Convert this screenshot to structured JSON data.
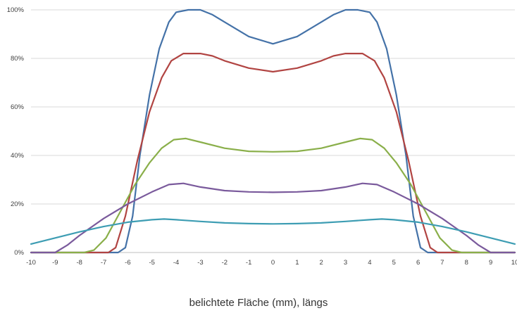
{
  "chart_data": {
    "type": "line",
    "title": "",
    "xlabel": "belichtete Fläche (mm), längs",
    "ylabel": "",
    "xlim": [
      -10,
      10
    ],
    "ylim": [
      0,
      100
    ],
    "x_ticks": [
      "-10",
      "-9",
      "-8",
      "-7",
      "-6",
      "-5",
      "-4",
      "-3",
      "-2",
      "-1",
      "0",
      "1",
      "2",
      "3",
      "4",
      "5",
      "6",
      "7",
      "8",
      "9",
      "10"
    ],
    "y_ticks": [
      "0%",
      "20%",
      "40%",
      "60%",
      "80%",
      "100%"
    ],
    "grid": "horizontal",
    "legend": "none",
    "series": [
      {
        "color": "#4472a8",
        "points": [
          [
            -10,
            0
          ],
          [
            -6.4,
            0
          ],
          [
            -6.1,
            2
          ],
          [
            -5.8,
            15
          ],
          [
            -5.5,
            40
          ],
          [
            -5.1,
            65
          ],
          [
            -4.7,
            84
          ],
          [
            -4.3,
            95
          ],
          [
            -4,
            99
          ],
          [
            -3.5,
            100
          ],
          [
            -3,
            100
          ],
          [
            -2.5,
            98
          ],
          [
            -2,
            95
          ],
          [
            -1,
            89
          ],
          [
            0,
            86
          ],
          [
            1,
            89
          ],
          [
            2,
            95
          ],
          [
            2.5,
            98
          ],
          [
            3,
            100
          ],
          [
            3.5,
            100
          ],
          [
            4,
            99
          ],
          [
            4.3,
            95
          ],
          [
            4.7,
            84
          ],
          [
            5.1,
            65
          ],
          [
            5.5,
            40
          ],
          [
            5.8,
            15
          ],
          [
            6.1,
            2
          ],
          [
            6.4,
            0
          ],
          [
            10,
            0
          ]
        ]
      },
      {
        "color": "#b14442",
        "points": [
          [
            -10,
            0
          ],
          [
            -6.8,
            0
          ],
          [
            -6.5,
            2
          ],
          [
            -6.1,
            15
          ],
          [
            -5.6,
            38
          ],
          [
            -5.1,
            58
          ],
          [
            -4.6,
            72
          ],
          [
            -4.2,
            79
          ],
          [
            -3.7,
            82
          ],
          [
            -3,
            82
          ],
          [
            -2.5,
            81
          ],
          [
            -2,
            79
          ],
          [
            -1,
            76
          ],
          [
            0,
            74.5
          ],
          [
            1,
            76
          ],
          [
            2,
            79
          ],
          [
            2.5,
            81
          ],
          [
            3,
            82
          ],
          [
            3.7,
            82
          ],
          [
            4.2,
            79
          ],
          [
            4.6,
            72
          ],
          [
            5.1,
            58
          ],
          [
            5.6,
            38
          ],
          [
            6.1,
            15
          ],
          [
            6.5,
            2
          ],
          [
            6.8,
            0
          ],
          [
            10,
            0
          ]
        ]
      },
      {
        "color": "#8aaf4a",
        "points": [
          [
            -10,
            0
          ],
          [
            -7.8,
            0
          ],
          [
            -7.4,
            1
          ],
          [
            -6.9,
            6
          ],
          [
            -6.3,
            17
          ],
          [
            -5.7,
            28
          ],
          [
            -5.1,
            37
          ],
          [
            -4.6,
            43
          ],
          [
            -4.1,
            46.5
          ],
          [
            -3.6,
            47
          ],
          [
            -3,
            45.5
          ],
          [
            -2,
            43
          ],
          [
            -1,
            41.7
          ],
          [
            0,
            41.5
          ],
          [
            1,
            41.7
          ],
          [
            2,
            43
          ],
          [
            3,
            45.5
          ],
          [
            3.6,
            47
          ],
          [
            4.1,
            46.5
          ],
          [
            4.6,
            43
          ],
          [
            5.1,
            37
          ],
          [
            5.7,
            28
          ],
          [
            6.3,
            17
          ],
          [
            6.9,
            6
          ],
          [
            7.4,
            1
          ],
          [
            7.8,
            0
          ],
          [
            10,
            0
          ]
        ]
      },
      {
        "color": "#7a5a9c",
        "points": [
          [
            -10,
            0
          ],
          [
            -9,
            0
          ],
          [
            -8.5,
            3
          ],
          [
            -8,
            7
          ],
          [
            -7,
            14
          ],
          [
            -6,
            20
          ],
          [
            -5,
            25
          ],
          [
            -4.3,
            28
          ],
          [
            -3.7,
            28.5
          ],
          [
            -3,
            27
          ],
          [
            -2,
            25.5
          ],
          [
            -1,
            25
          ],
          [
            0,
            24.8
          ],
          [
            1,
            25
          ],
          [
            2,
            25.5
          ],
          [
            3,
            27
          ],
          [
            3.7,
            28.5
          ],
          [
            4.3,
            28
          ],
          [
            5,
            25
          ],
          [
            6,
            20
          ],
          [
            7,
            14
          ],
          [
            8,
            7
          ],
          [
            8.5,
            3
          ],
          [
            9,
            0
          ],
          [
            10,
            0
          ]
        ]
      },
      {
        "color": "#3d9db3",
        "points": [
          [
            -10,
            3.5
          ],
          [
            -9,
            6
          ],
          [
            -8,
            8.5
          ],
          [
            -7,
            10.7
          ],
          [
            -6,
            12.5
          ],
          [
            -5,
            13.5
          ],
          [
            -4.5,
            13.8
          ],
          [
            -4,
            13.5
          ],
          [
            -3,
            12.8
          ],
          [
            -2,
            12.2
          ],
          [
            -1,
            11.9
          ],
          [
            0,
            11.8
          ],
          [
            1,
            11.9
          ],
          [
            2,
            12.2
          ],
          [
            3,
            12.8
          ],
          [
            4,
            13.5
          ],
          [
            4.5,
            13.8
          ],
          [
            5,
            13.5
          ],
          [
            6,
            12.5
          ],
          [
            7,
            10.7
          ],
          [
            8,
            8.5
          ],
          [
            9,
            6
          ],
          [
            10,
            3.5
          ]
        ]
      }
    ]
  }
}
